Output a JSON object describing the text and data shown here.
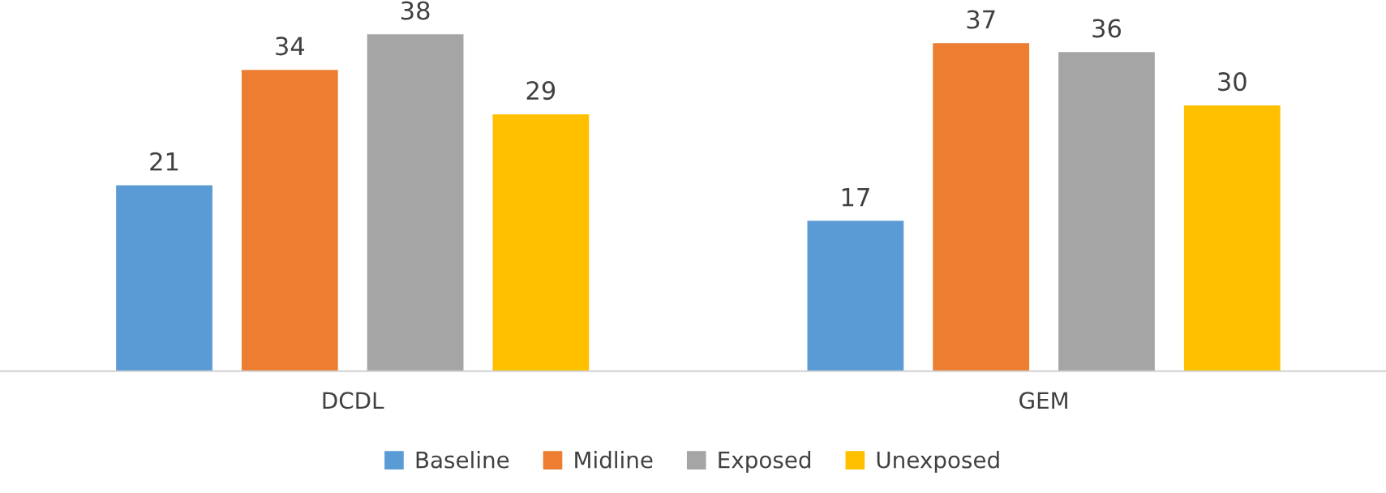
{
  "chart_data": {
    "type": "bar",
    "categories": [
      "DCDL",
      "GEM"
    ],
    "series": [
      {
        "name": "Baseline",
        "color": "#5b9bd5",
        "values": [
          21,
          17
        ]
      },
      {
        "name": "Midline",
        "color": "#ed7d31",
        "values": [
          34,
          37
        ]
      },
      {
        "name": "Exposed",
        "color": "#a5a5a5",
        "values": [
          38,
          36
        ]
      },
      {
        "name": "Unexposed",
        "color": "#ffc000",
        "values": [
          29,
          30
        ]
      }
    ],
    "data_labels": true,
    "grid": false,
    "legend": "bottom"
  }
}
